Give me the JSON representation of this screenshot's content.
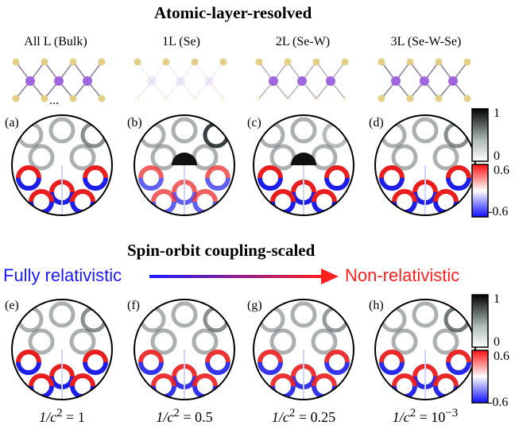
{
  "top_title": "Atomic-layer-resolved",
  "columns": [
    {
      "label": "All L (Bulk)",
      "extra": "..."
    },
    {
      "label": "1L (Se)"
    },
    {
      "label": "2L (Se-W)"
    },
    {
      "label": "3L (Se-W-Se)"
    }
  ],
  "top_panels": [
    "(a)",
    "(b)",
    "(c)",
    "(d)"
  ],
  "bottom_title": "Spin-orbit coupling-scaled",
  "arrow_left_label": "Fully relativistic",
  "arrow_right_label": "Non-relativistic",
  "bottom_panels": [
    "(e)",
    "(f)",
    "(g)",
    "(h)"
  ],
  "formulas": [
    {
      "lhs": "1/c",
      "sup": "2",
      "rhs": " = 1"
    },
    {
      "lhs": "1/c",
      "sup": "2",
      "rhs": " = 0.5"
    },
    {
      "lhs": "1/c",
      "sup": "2",
      "rhs": " = 0.25"
    },
    {
      "lhs": "1/c",
      "sup": "2",
      "rhs": " = 10",
      "rhs_sup": "−3"
    }
  ],
  "colorbar_gray": {
    "max": "1",
    "min": "0"
  },
  "colorbar_rb": {
    "max": "0.6",
    "min": "-0.6"
  },
  "colors": {
    "blue": "#1a1aff",
    "red": "#ff2020",
    "atom_se": "#e3cf86",
    "atom_w": "#a066e0"
  }
}
